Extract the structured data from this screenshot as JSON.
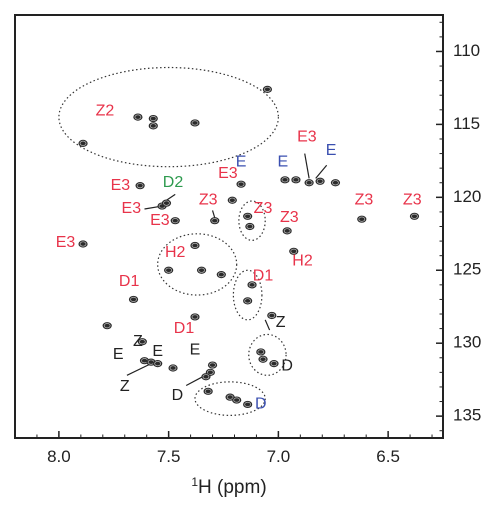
{
  "chart_data": {
    "type": "scatter",
    "title": "",
    "xlabel": "1H (ppm)",
    "xlabel_sup": "1",
    "xlabel_rest": "H (ppm)",
    "ylabel": "",
    "xlim": [
      8.2,
      6.25
    ],
    "ylim": [
      107.5,
      136.5
    ],
    "x_reversed": true,
    "y_reversed": true,
    "y_axis_side": "right",
    "xticks": [
      8.0,
      7.5,
      7.0,
      6.5
    ],
    "xtick_labels": [
      "8.0",
      "7.5",
      "7.0",
      "6.5"
    ],
    "yticks": [
      110,
      115,
      120,
      125,
      130,
      135
    ],
    "ytick_labels": [
      "110",
      "115",
      "120",
      "125",
      "130",
      "135"
    ],
    "colors": {
      "red": "#e8334a",
      "blue": "#3a4fb0",
      "green": "#2e9a4e",
      "black": "#222222",
      "peak": "#333333"
    },
    "peaks": [
      {
        "x": 7.05,
        "y": 112.6
      },
      {
        "x": 7.64,
        "y": 114.5
      },
      {
        "x": 7.57,
        "y": 114.6
      },
      {
        "x": 7.57,
        "y": 115.1
      },
      {
        "x": 7.38,
        "y": 114.9
      },
      {
        "x": 7.89,
        "y": 116.3
      },
      {
        "x": 7.63,
        "y": 119.2
      },
      {
        "x": 7.17,
        "y": 119.1
      },
      {
        "x": 6.97,
        "y": 118.8
      },
      {
        "x": 6.92,
        "y": 118.8
      },
      {
        "x": 6.86,
        "y": 119.0
      },
      {
        "x": 6.81,
        "y": 118.9
      },
      {
        "x": 6.74,
        "y": 119.0
      },
      {
        "x": 7.53,
        "y": 120.6
      },
      {
        "x": 7.51,
        "y": 120.4
      },
      {
        "x": 7.21,
        "y": 120.2
      },
      {
        "x": 7.47,
        "y": 121.6
      },
      {
        "x": 7.29,
        "y": 121.6
      },
      {
        "x": 7.14,
        "y": 121.3
      },
      {
        "x": 7.13,
        "y": 122.0
      },
      {
        "x": 6.96,
        "y": 122.3
      },
      {
        "x": 6.62,
        "y": 121.5
      },
      {
        "x": 6.38,
        "y": 121.3
      },
      {
        "x": 7.89,
        "y": 123.2
      },
      {
        "x": 7.38,
        "y": 123.3
      },
      {
        "x": 6.93,
        "y": 123.7
      },
      {
        "x": 7.5,
        "y": 125.0
      },
      {
        "x": 7.35,
        "y": 125.0
      },
      {
        "x": 7.26,
        "y": 125.3
      },
      {
        "x": 7.12,
        "y": 126.0
      },
      {
        "x": 7.14,
        "y": 127.1
      },
      {
        "x": 7.66,
        "y": 127.0
      },
      {
        "x": 7.03,
        "y": 128.1
      },
      {
        "x": 7.38,
        "y": 128.2
      },
      {
        "x": 7.78,
        "y": 128.8
      },
      {
        "x": 7.62,
        "y": 129.9
      },
      {
        "x": 7.08,
        "y": 130.6
      },
      {
        "x": 7.07,
        "y": 131.1
      },
      {
        "x": 7.02,
        "y": 131.4
      },
      {
        "x": 7.61,
        "y": 131.2
      },
      {
        "x": 7.58,
        "y": 131.3
      },
      {
        "x": 7.55,
        "y": 131.4
      },
      {
        "x": 7.48,
        "y": 131.7
      },
      {
        "x": 7.3,
        "y": 131.5
      },
      {
        "x": 7.31,
        "y": 132.0
      },
      {
        "x": 7.33,
        "y": 132.3
      },
      {
        "x": 7.32,
        "y": 133.3
      },
      {
        "x": 7.22,
        "y": 133.7
      },
      {
        "x": 7.19,
        "y": 133.9
      },
      {
        "x": 7.14,
        "y": 134.2
      }
    ],
    "labels": [
      {
        "text": "Z2",
        "x": 7.79,
        "y": 114.1,
        "color": "red"
      },
      {
        "text": "E3",
        "x": 6.87,
        "y": 115.9,
        "color": "red"
      },
      {
        "text": "E",
        "x": 7.17,
        "y": 117.6,
        "color": "blue"
      },
      {
        "text": "E",
        "x": 6.98,
        "y": 117.6,
        "color": "blue"
      },
      {
        "text": "E",
        "x": 6.76,
        "y": 116.8,
        "color": "blue"
      },
      {
        "text": "E3",
        "x": 7.23,
        "y": 118.4,
        "color": "red"
      },
      {
        "text": "D2",
        "x": 7.48,
        "y": 119.0,
        "color": "green"
      },
      {
        "text": "E3",
        "x": 7.72,
        "y": 119.2,
        "color": "red"
      },
      {
        "text": "Z3",
        "x": 7.32,
        "y": 120.2,
        "color": "red"
      },
      {
        "text": "E3",
        "x": 7.67,
        "y": 120.8,
        "color": "red"
      },
      {
        "text": "E3",
        "x": 7.54,
        "y": 121.6,
        "color": "red"
      },
      {
        "text": "Z3",
        "x": 7.07,
        "y": 120.8,
        "color": "red"
      },
      {
        "text": "Z3",
        "x": 6.95,
        "y": 121.4,
        "color": "red"
      },
      {
        "text": "Z3",
        "x": 6.61,
        "y": 120.2,
        "color": "red"
      },
      {
        "text": "Z3",
        "x": 6.39,
        "y": 120.2,
        "color": "red"
      },
      {
        "text": "E3",
        "x": 7.97,
        "y": 123.1,
        "color": "red"
      },
      {
        "text": "H2",
        "x": 7.47,
        "y": 123.8,
        "color": "red"
      },
      {
        "text": "H2",
        "x": 6.89,
        "y": 124.4,
        "color": "red"
      },
      {
        "text": "D1",
        "x": 7.07,
        "y": 125.4,
        "color": "red"
      },
      {
        "text": "D1",
        "x": 7.68,
        "y": 125.8,
        "color": "red"
      },
      {
        "text": "D1",
        "x": 7.43,
        "y": 129.0,
        "color": "red"
      },
      {
        "text": "Z",
        "x": 6.99,
        "y": 128.6,
        "color": "black"
      },
      {
        "text": "Z",
        "x": 7.64,
        "y": 129.9,
        "color": "black"
      },
      {
        "text": "E",
        "x": 7.73,
        "y": 130.8,
        "color": "black"
      },
      {
        "text": "E",
        "x": 7.55,
        "y": 130.6,
        "color": "black"
      },
      {
        "text": "E",
        "x": 7.38,
        "y": 130.5,
        "color": "black"
      },
      {
        "text": "D",
        "x": 6.96,
        "y": 131.6,
        "color": "black"
      },
      {
        "text": "Z",
        "x": 7.7,
        "y": 133.0,
        "color": "black"
      },
      {
        "text": "D",
        "x": 7.46,
        "y": 133.6,
        "color": "black"
      },
      {
        "text": "D",
        "x": 7.08,
        "y": 134.2,
        "color": "blue"
      }
    ],
    "leader_lines": [
      {
        "from": [
          6.88,
          117.0
        ],
        "to": [
          6.86,
          118.7
        ]
      },
      {
        "from": [
          6.78,
          117.8
        ],
        "to": [
          6.83,
          118.7
        ]
      },
      {
        "from": [
          7.47,
          119.8
        ],
        "to": [
          7.52,
          120.3
        ]
      },
      {
        "from": [
          7.61,
          120.8
        ],
        "to": [
          7.53,
          120.6
        ]
      },
      {
        "from": [
          7.3,
          120.9
        ],
        "to": [
          7.29,
          121.4
        ]
      },
      {
        "from": [
          7.69,
          132.2
        ],
        "to": [
          7.58,
          131.4
        ]
      },
      {
        "from": [
          7.42,
          132.9
        ],
        "to": [
          7.32,
          132.1
        ]
      },
      {
        "from": [
          7.04,
          129.1
        ],
        "to": [
          7.06,
          128.4
        ]
      }
    ],
    "regions": [
      {
        "cx": 7.5,
        "cy": 114.5,
        "rx": 0.5,
        "ry": 3.4
      },
      {
        "cx": 7.12,
        "cy": 121.6,
        "rx": 0.06,
        "ry": 1.35
      },
      {
        "cx": 7.37,
        "cy": 124.6,
        "rx": 0.18,
        "ry": 2.1
      },
      {
        "cx": 7.14,
        "cy": 126.7,
        "rx": 0.065,
        "ry": 1.7
      },
      {
        "cx": 7.05,
        "cy": 130.8,
        "rx": 0.085,
        "ry": 1.4
      },
      {
        "cx": 7.22,
        "cy": 133.8,
        "rx": 0.16,
        "ry": 1.15
      }
    ]
  }
}
